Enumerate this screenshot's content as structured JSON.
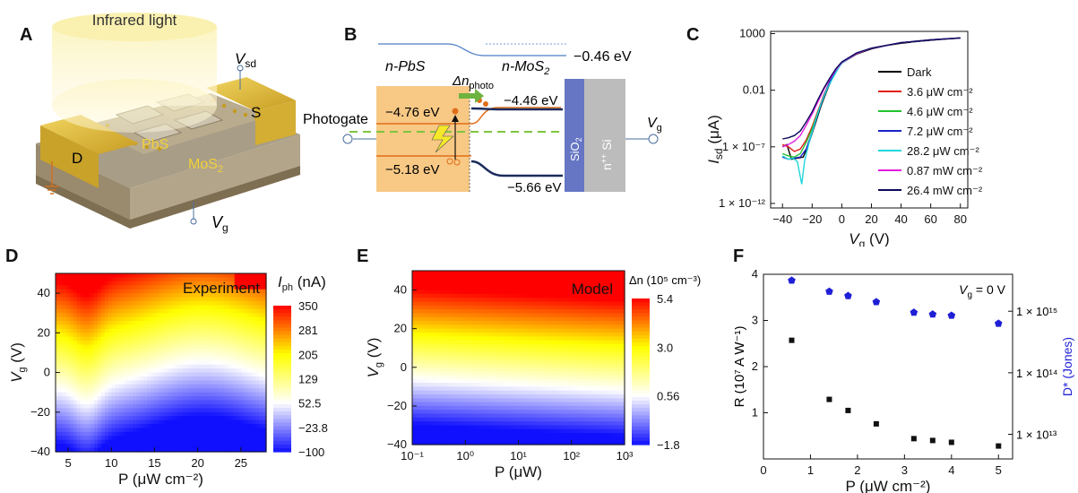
{
  "panels": {
    "A": {
      "label": "A",
      "light_label": "Infrared light",
      "vsd_label": "V",
      "vsd_sub": "sd",
      "s_label": "S",
      "d_label": "D",
      "pbs_label": "PbS",
      "mos2_label": "MoS",
      "mos2_sub": "2",
      "vg_label": "V",
      "vg_sub": "g"
    },
    "B": {
      "label": "B",
      "npbs": "n-PbS",
      "nmos2": "n-MoS",
      "nmos2_sub": "2",
      "e_top_right": "−0.46 eV",
      "dn_label": "Δn",
      "dn_sub": "photo",
      "e_pbs_cb": "−4.76 eV",
      "e_mos2_cb": "−4.46 eV",
      "e_pbs_vb": "−5.18 eV",
      "e_mos2_vb": "−5.66 eV",
      "photogate": "Photogate",
      "sio2": "SiO",
      "sio2_sub": "2",
      "si": "n",
      "si_sup": "++",
      "si_tail": " Si",
      "vg": "V",
      "vg_sub": "g"
    },
    "C": {
      "label": "C"
    },
    "D": {
      "label": "D",
      "inset": "Experiment",
      "cbar_title": "I",
      "cbar_sub": "ph",
      "cbar_unit": " (nA)",
      "cbar_ticks": [
        "350",
        "281",
        "205",
        "129",
        "52.5",
        "−23.8",
        "−100"
      ],
      "x_ticks": [
        "5",
        "10",
        "15",
        "20",
        "25"
      ],
      "y_ticks": [
        "40",
        "20",
        "0",
        "−20",
        "−40"
      ],
      "xlabel": "P (μW cm⁻²)",
      "ylabel": "V",
      "ylabel_sub": "g",
      "ylabel_unit": " (V)"
    },
    "E": {
      "label": "E",
      "inset": "Model",
      "cbar_title": "Δn  (10⁵ cm⁻³)",
      "cbar_ticks": [
        "5.4",
        "3.0",
        "0.56",
        "−1.8"
      ],
      "x_ticks": [
        "10⁻¹",
        "10⁰",
        "10¹",
        "10²",
        "10³"
      ],
      "y_ticks": [
        "40",
        "20",
        "0",
        "−20",
        "−40"
      ],
      "xlabel": "P (μW)",
      "ylabel": "V",
      "ylabel_sub": "g",
      "ylabel_unit": " (V)"
    },
    "F": {
      "label": "F",
      "inset": "V",
      "inset_sub": "g",
      "inset_tail": " = 0 V",
      "ylabel_left": "R (10⁷ A W⁻¹)",
      "ylabel_right": "D* (Jones)",
      "xlabel": "P (μW cm⁻²)",
      "right_ticks": [
        "1 × 10¹⁵",
        "1 × 10¹⁴",
        "1 × 10¹³"
      ]
    }
  },
  "chart_data": [
    {
      "panel": "C",
      "type": "line",
      "xlabel": "V_g (V)",
      "ylabel": "I_sd (μA)",
      "x_ticks": [
        "−40",
        "−20",
        "0",
        "20",
        "40",
        "60",
        "80"
      ],
      "y_ticks": [
        "1000",
        "0.01",
        "1 × 10⁻⁷",
        "1 × 10⁻¹²"
      ],
      "xlim": [
        -48,
        85
      ],
      "ylim_log10": [
        -12.4,
        3.2
      ],
      "yscale": "log",
      "legend": "top-right",
      "series": [
        {
          "name": "Dark",
          "color": "#000000",
          "x": [
            -40,
            -37,
            -34,
            -30,
            -26,
            -22,
            -18,
            -14,
            -10,
            -6,
            -2,
            0,
            10,
            20,
            30,
            40,
            50,
            60,
            70,
            80
          ],
          "y": [
            -7.0,
            -6.8,
            -8.1,
            -8.0,
            -7.9,
            -6.6,
            -5.0,
            -3.4,
            -2.0,
            -0.8,
            0.1,
            0.4,
            1.2,
            1.65,
            1.95,
            2.15,
            2.3,
            2.42,
            2.52,
            2.6
          ]
        },
        {
          "name": "3.6 μW cm⁻²",
          "color": "#e0201c",
          "x": [
            -40,
            -36,
            -32,
            -28,
            -24,
            -20,
            -16,
            -12,
            -8,
            -4,
            0,
            10,
            20,
            40,
            60,
            80
          ],
          "y": [
            -6.8,
            -7.0,
            -7.4,
            -7.2,
            -6.4,
            -5.2,
            -3.8,
            -2.4,
            -1.2,
            -0.3,
            0.4,
            1.25,
            1.7,
            2.2,
            2.45,
            2.62
          ]
        },
        {
          "name": "4.6 μW cm⁻²",
          "color": "#22c32e",
          "x": [
            -40,
            -36,
            -32,
            -28,
            -24,
            -20,
            -16,
            -12,
            -8,
            -4,
            0,
            10,
            20,
            40,
            60,
            80
          ],
          "y": [
            -7.6,
            -7.8,
            -7.9,
            -7.6,
            -6.6,
            -5.4,
            -3.9,
            -2.5,
            -1.2,
            -0.3,
            0.4,
            1.25,
            1.7,
            2.2,
            2.45,
            2.62
          ]
        },
        {
          "name": "7.2 μW cm⁻²",
          "color": "#1a23c8",
          "x": [
            -40,
            -36,
            -32,
            -28,
            -24,
            -20,
            -16,
            -12,
            -8,
            -4,
            0,
            10,
            20,
            40,
            60,
            80
          ],
          "y": [
            -7.9,
            -8.1,
            -8.0,
            -7.9,
            -7.2,
            -5.7,
            -4.0,
            -2.5,
            -1.2,
            -0.3,
            0.4,
            1.25,
            1.7,
            2.2,
            2.45,
            2.62
          ]
        },
        {
          "name": "28.2 μW cm⁻²",
          "color": "#20d6dc",
          "x": [
            -40,
            -36,
            -33,
            -30,
            -27,
            -25,
            -22,
            -18,
            -14,
            -10,
            -6,
            -2,
            0,
            10,
            20,
            40,
            60,
            80
          ],
          "y": [
            -7.8,
            -8.1,
            -8.0,
            -8.3,
            -10.3,
            -8.2,
            -6.6,
            -4.8,
            -3.2,
            -1.9,
            -0.9,
            0.0,
            0.4,
            1.25,
            1.7,
            2.2,
            2.45,
            2.62
          ]
        },
        {
          "name": "0.87 mW cm⁻²",
          "color": "#e21ee0",
          "x": [
            -40,
            -36,
            -32,
            -28,
            -24,
            -20,
            -16,
            -12,
            -8,
            -4,
            0,
            10,
            20,
            40,
            60,
            80
          ],
          "y": [
            -7.0,
            -6.8,
            -6.5,
            -6.0,
            -5.1,
            -4.1,
            -3.0,
            -1.9,
            -1.0,
            -0.2,
            0.45,
            1.25,
            1.7,
            2.2,
            2.45,
            2.62
          ]
        },
        {
          "name": "26.4 mW cm⁻²",
          "color": "#0a0a5a",
          "x": [
            -40,
            -36,
            -32,
            -28,
            -24,
            -20,
            -16,
            -12,
            -8,
            -4,
            0,
            10,
            20,
            40,
            60,
            80
          ],
          "y": [
            -6.3,
            -6.2,
            -6.0,
            -5.6,
            -4.8,
            -3.9,
            -2.8,
            -1.8,
            -0.9,
            -0.1,
            0.5,
            1.3,
            1.72,
            2.2,
            2.45,
            2.62
          ]
        }
      ]
    },
    {
      "panel": "D",
      "type": "heatmap",
      "xlim": [
        3.5,
        28
      ],
      "ylim": [
        -40,
        50
      ],
      "zlim": [
        -100,
        350
      ],
      "colormap": [
        "#1010ff",
        "#ffffff",
        "#ffff00",
        "#ff0000"
      ]
    },
    {
      "panel": "E",
      "type": "heatmap",
      "xlim_log10": [
        -1,
        3
      ],
      "ylim": [
        -40,
        50
      ],
      "zlim": [
        -1.8,
        5.4
      ],
      "colormap": [
        "#1010ff",
        "#ffffff",
        "#ffff00",
        "#ff0000"
      ]
    },
    {
      "panel": "F",
      "type": "scatter",
      "x_ticks": [
        "0",
        "1",
        "2",
        "3",
        "4",
        "5"
      ],
      "y_ticks": [
        "1",
        "2",
        "3",
        "4"
      ],
      "xlim": [
        0,
        5.3
      ],
      "ylim": [
        0,
        4
      ],
      "right_ylim_log10": [
        12.6,
        15.6
      ],
      "series": [
        {
          "name": "R",
          "axis": "left",
          "color": "#111111",
          "marker": "square",
          "x": [
            0.6,
            1.4,
            1.8,
            2.4,
            3.2,
            3.6,
            4.0,
            5.0
          ],
          "y": [
            2.57,
            1.29,
            1.05,
            0.76,
            0.44,
            0.4,
            0.36,
            0.28
          ]
        },
        {
          "name": "D*",
          "axis": "right",
          "color": "#1f1fd6",
          "marker": "pentagon",
          "x": [
            0.6,
            1.4,
            1.8,
            2.4,
            3.2,
            3.6,
            4.0,
            5.0
          ],
          "y": [
            15.5,
            15.32,
            15.25,
            15.15,
            14.98,
            14.95,
            14.93,
            14.8
          ]
        }
      ]
    }
  ]
}
